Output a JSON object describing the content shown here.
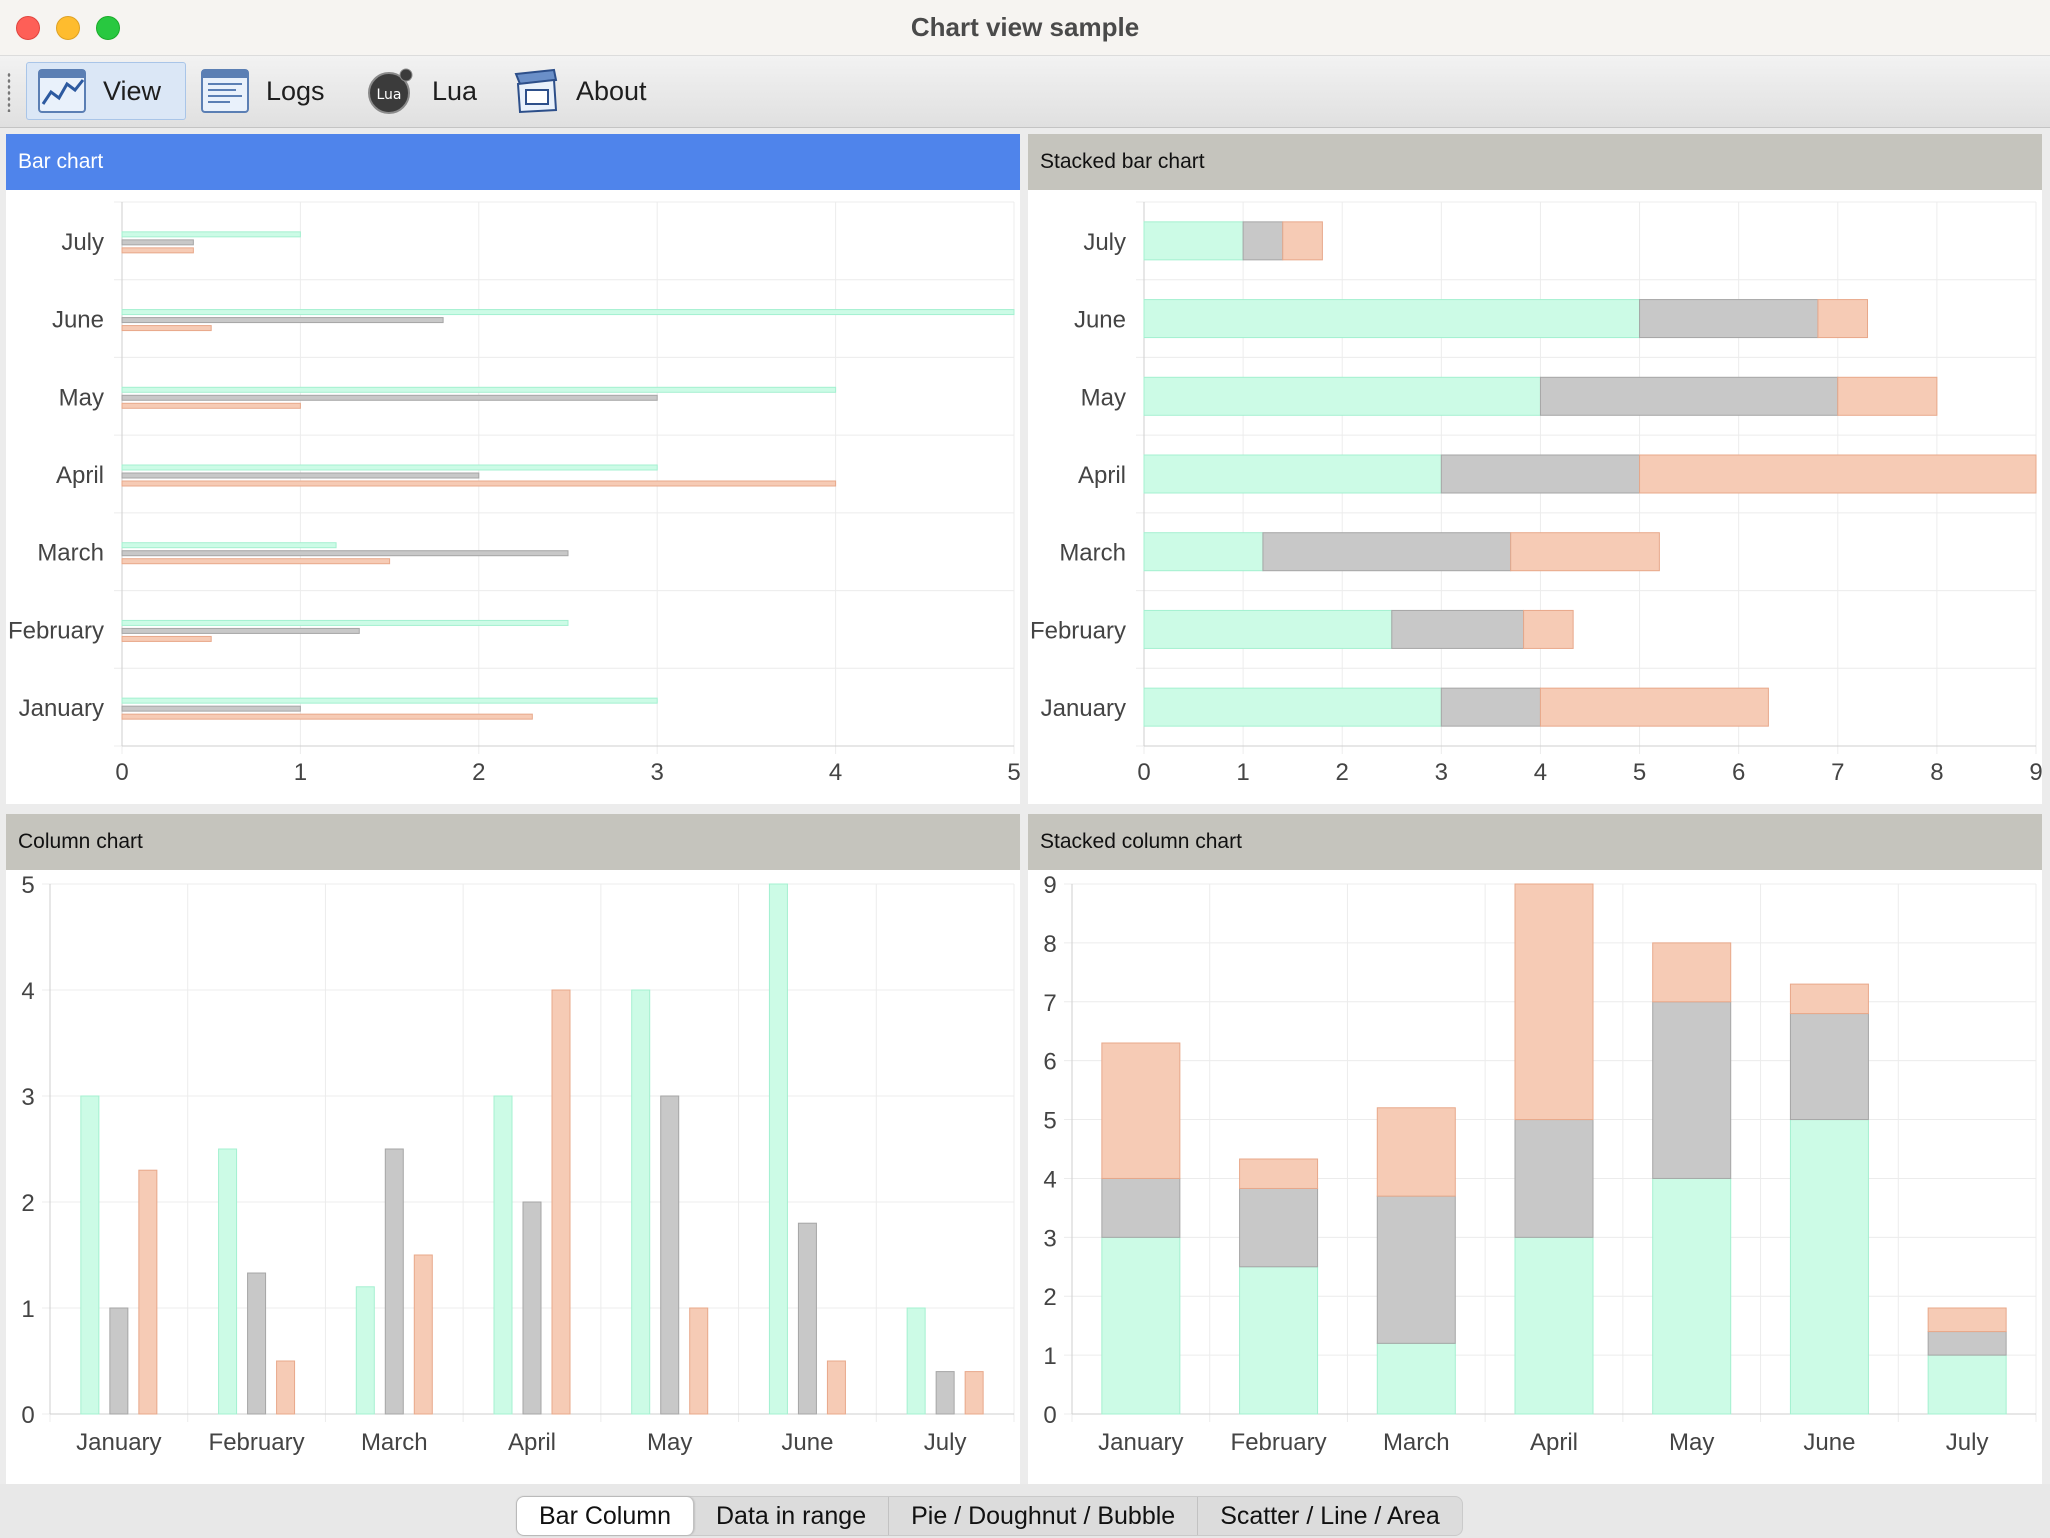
{
  "window": {
    "title": "Chart view sample"
  },
  "toolbar": {
    "items": [
      {
        "label": "View",
        "icon": "chart-view-icon",
        "active": true
      },
      {
        "label": "Logs",
        "icon": "logs-icon",
        "active": false
      },
      {
        "label": "Lua",
        "icon": "lua-icon",
        "active": false
      },
      {
        "label": "About",
        "icon": "about-icon",
        "active": false
      }
    ]
  },
  "colors": {
    "series1": "#ccfbe6",
    "series2": "#c8c8c8",
    "series3": "#f6cbb5",
    "selected_header": "#4f84eb",
    "header": "#c5c4bd"
  },
  "months": [
    "January",
    "February",
    "March",
    "April",
    "May",
    "June",
    "July"
  ],
  "panels": {
    "bar": {
      "title": "Bar chart"
    },
    "stacked_bar": {
      "title": "Stacked bar chart"
    },
    "column": {
      "title": "Column chart"
    },
    "stacked_column": {
      "title": "Stacked column chart"
    }
  },
  "chart_data": [
    {
      "type": "bar",
      "orientation": "horizontal",
      "title": "Bar chart",
      "categories": [
        "January",
        "February",
        "March",
        "April",
        "May",
        "June",
        "July"
      ],
      "series": [
        {
          "values": [
            3,
            2.5,
            1.2,
            3,
            4,
            5,
            1
          ]
        },
        {
          "values": [
            1,
            1.33,
            2.5,
            2,
            3,
            1.8,
            0.4
          ]
        },
        {
          "values": [
            2.3,
            0.5,
            1.5,
            4,
            1,
            0.5,
            0.4
          ]
        }
      ],
      "xlim": [
        0,
        5
      ],
      "ticks": [
        0,
        1,
        2,
        3,
        4,
        5
      ],
      "grid": true
    },
    {
      "type": "bar",
      "orientation": "horizontal",
      "stacked": true,
      "title": "Stacked bar chart",
      "categories": [
        "January",
        "February",
        "March",
        "April",
        "May",
        "June",
        "July"
      ],
      "series": [
        {
          "values": [
            3,
            2.5,
            1.2,
            3,
            4,
            5,
            1
          ]
        },
        {
          "values": [
            1,
            1.33,
            2.5,
            2,
            3,
            1.8,
            0.4
          ]
        },
        {
          "values": [
            2.3,
            0.5,
            1.5,
            4,
            1,
            0.5,
            0.4
          ]
        }
      ],
      "xlim": [
        0,
        9
      ],
      "ticks": [
        0,
        1,
        2,
        3,
        4,
        5,
        6,
        7,
        8,
        9
      ],
      "grid": true
    },
    {
      "type": "bar",
      "orientation": "vertical",
      "title": "Column chart",
      "categories": [
        "January",
        "February",
        "March",
        "April",
        "May",
        "June",
        "July"
      ],
      "series": [
        {
          "values": [
            3,
            2.5,
            1.2,
            3,
            4,
            5,
            1
          ]
        },
        {
          "values": [
            1,
            1.33,
            2.5,
            2,
            3,
            1.8,
            0.4
          ]
        },
        {
          "values": [
            2.3,
            0.5,
            1.5,
            4,
            1,
            0.5,
            0.4
          ]
        }
      ],
      "ylim": [
        0,
        5
      ],
      "ticks": [
        0,
        1,
        2,
        3,
        4,
        5
      ],
      "grid": true
    },
    {
      "type": "bar",
      "orientation": "vertical",
      "stacked": true,
      "title": "Stacked column chart",
      "categories": [
        "January",
        "February",
        "March",
        "April",
        "May",
        "June",
        "July"
      ],
      "series": [
        {
          "values": [
            3,
            2.5,
            1.2,
            3,
            4,
            5,
            1
          ]
        },
        {
          "values": [
            1,
            1.33,
            2.5,
            2,
            3,
            1.8,
            0.4
          ]
        },
        {
          "values": [
            2.3,
            0.5,
            1.5,
            4,
            1,
            0.5,
            0.4
          ]
        }
      ],
      "ylim": [
        0,
        9
      ],
      "ticks": [
        0,
        1,
        2,
        3,
        4,
        5,
        6,
        7,
        8,
        9
      ],
      "grid": true
    }
  ],
  "tabs": [
    {
      "label": "Bar  Column",
      "active": true
    },
    {
      "label": "Data in range",
      "active": false
    },
    {
      "label": "Pie / Doughnut / Bubble",
      "active": false
    },
    {
      "label": "Scatter / Line / Area",
      "active": false
    }
  ]
}
